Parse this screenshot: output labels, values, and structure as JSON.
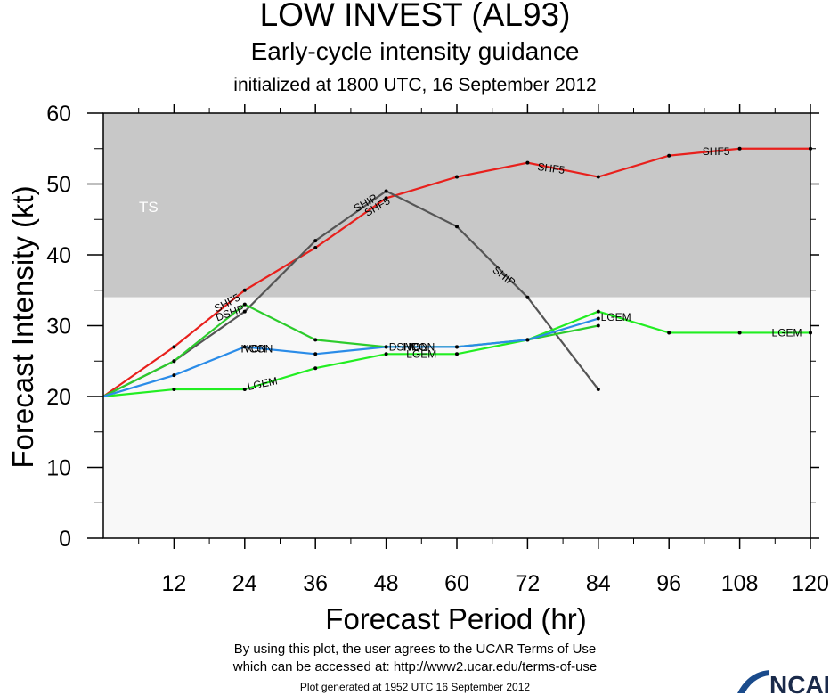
{
  "title": "LOW INVEST (AL93)",
  "subtitle": "Early-cycle intensity guidance",
  "subtitle2": "initialized at 1800 UTC, 16 September 2012",
  "footer": {
    "line1": "By using this plot, the user agrees to the UCAR Terms of Use",
    "line2": "which can be accessed at: http://www2.ucar.edu/terms-of-use",
    "generated": "Plot generated at 1952 UTC   16 September 2012",
    "logo_text": "NCAR"
  },
  "chart_data": {
    "type": "line",
    "xlabel": "Forecast Period (hr)",
    "ylabel": "Forecast Intensity (kt)",
    "xlim": [
      0,
      120
    ],
    "ylim": [
      0,
      60
    ],
    "xticks": [
      12,
      24,
      36,
      48,
      60,
      72,
      84,
      96,
      108,
      120
    ],
    "yticks": [
      0,
      10,
      20,
      30,
      40,
      50,
      60
    ],
    "grid": false,
    "bands": [
      {
        "label": "TS",
        "from": 34,
        "to": 60,
        "color": "#c8c8c8"
      },
      {
        "label": "",
        "from": 0,
        "to": 34,
        "color": "#f8f8f8"
      }
    ],
    "series": [
      {
        "name": "SHF5",
        "color": "#e8201c",
        "x": [
          0,
          12,
          24,
          36,
          48,
          60,
          72,
          84,
          96,
          108,
          120
        ],
        "y": [
          20,
          27,
          35,
          41,
          48,
          51,
          53,
          51,
          54,
          55,
          55
        ],
        "labels": [
          {
            "x": 21,
            "y": 33.2,
            "angle": -28
          },
          {
            "x": 46.5,
            "y": 46.8,
            "angle": -30
          },
          {
            "x": 76,
            "y": 52.2,
            "angle": 8
          },
          {
            "x": 104,
            "y": 54.6,
            "angle": 0
          }
        ]
      },
      {
        "name": "SHIP",
        "color": "#555555",
        "x": [
          0,
          12,
          24,
          36,
          48,
          60,
          72,
          84
        ],
        "y": [
          20,
          25,
          32,
          42,
          49,
          44,
          34,
          21
        ],
        "labels": [
          {
            "x": 44.5,
            "y": 47.3,
            "angle": -30
          },
          {
            "x": 68,
            "y": 37,
            "angle": 38
          }
        ]
      },
      {
        "name": "DSHP",
        "color": "#2ccc2c",
        "x": [
          0,
          12,
          24,
          36,
          48,
          60,
          72,
          84
        ],
        "y": [
          20,
          25,
          33,
          28,
          27,
          27,
          28,
          30
        ],
        "labels": [
          {
            "x": 21.5,
            "y": 31.8,
            "angle": -20
          },
          {
            "x": 51,
            "y": 27,
            "angle": 0
          }
        ]
      },
      {
        "name": "LGEM",
        "color": "#22ee22",
        "x": [
          0,
          12,
          24,
          36,
          48,
          60,
          72,
          84,
          96,
          108,
          120
        ],
        "y": [
          20,
          21,
          21,
          24,
          26,
          26,
          28,
          32,
          29,
          29,
          29
        ],
        "labels": [
          {
            "x": 27,
            "y": 21.8,
            "angle": -12
          },
          {
            "x": 54,
            "y": 26,
            "angle": 0
          },
          {
            "x": 87,
            "y": 31.2,
            "angle": 0
          },
          {
            "x": 116,
            "y": 29,
            "angle": 0
          }
        ]
      },
      {
        "name": "IVCN",
        "color": "#2a8ce8",
        "x": [
          0,
          12,
          24,
          36,
          48,
          60,
          72,
          84
        ],
        "y": [
          20,
          23,
          27,
          26,
          27,
          27,
          28,
          31
        ],
        "labels": [
          {
            "x": 25.5,
            "y": 26.7,
            "angle": 0
          },
          {
            "x": 53,
            "y": 27,
            "angle": 0
          }
        ]
      },
      {
        "name": "ICON",
        "color": "#2a8ce8",
        "x": [],
        "y": [],
        "labels": [
          {
            "x": 26.5,
            "y": 26.7,
            "angle": 0
          },
          {
            "x": 54,
            "y": 27,
            "angle": 0
          }
        ]
      }
    ]
  }
}
